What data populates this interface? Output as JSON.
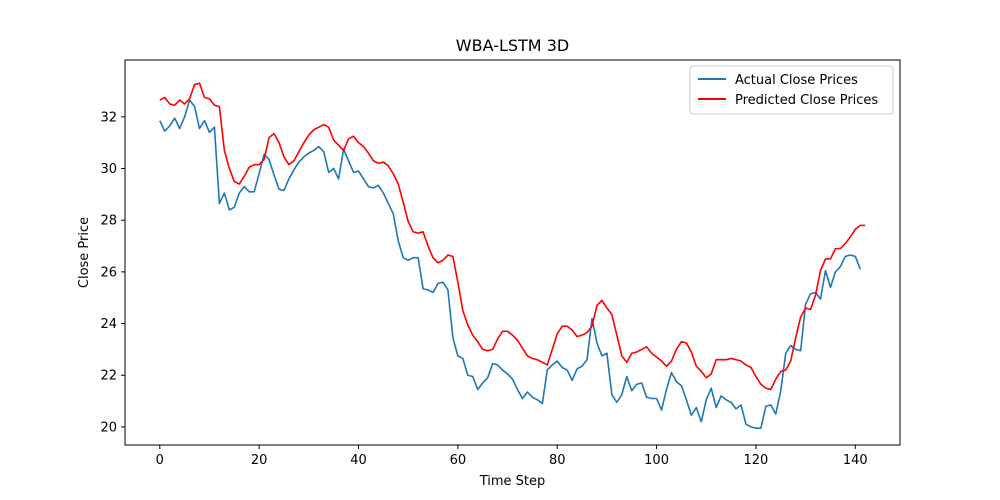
{
  "chart_data": {
    "type": "line",
    "title": "WBA-LSTM 3D",
    "xlabel": "Time Step",
    "ylabel": "Close Price",
    "xlim": [
      -7,
      149
    ],
    "ylim": [
      19.3,
      34.2
    ],
    "xticks": [
      0,
      20,
      40,
      60,
      80,
      100,
      120,
      140
    ],
    "yticks": [
      20,
      22,
      24,
      26,
      28,
      30,
      32
    ],
    "grid": false,
    "legend_position": "top-right",
    "series": [
      {
        "name": "Actual Close Prices",
        "color": "#1f77b4",
        "values": [
          31.85,
          31.45,
          31.65,
          31.95,
          31.55,
          32.0,
          32.65,
          32.4,
          31.55,
          31.85,
          31.4,
          31.6,
          28.65,
          29.05,
          28.4,
          28.5,
          29.05,
          29.3,
          29.1,
          29.1,
          29.8,
          30.55,
          30.35,
          29.75,
          29.2,
          29.15,
          29.6,
          29.95,
          30.25,
          30.45,
          30.6,
          30.7,
          30.85,
          30.65,
          29.85,
          30.0,
          29.6,
          30.75,
          30.3,
          29.85,
          29.9,
          29.6,
          29.3,
          29.25,
          29.35,
          29.05,
          28.65,
          28.25,
          27.2,
          26.55,
          26.45,
          26.55,
          26.55,
          25.35,
          25.3,
          25.2,
          25.55,
          25.6,
          25.3,
          23.45,
          22.75,
          22.65,
          22.0,
          21.95,
          21.45,
          21.7,
          21.9,
          22.45,
          22.4,
          22.2,
          22.05,
          21.85,
          21.45,
          21.1,
          21.35,
          21.15,
          21.05,
          20.9,
          22.2,
          22.4,
          22.55,
          22.3,
          22.2,
          21.8,
          22.25,
          22.35,
          22.6,
          24.2,
          23.25,
          22.75,
          22.85,
          21.25,
          20.95,
          21.25,
          21.95,
          21.4,
          21.65,
          21.7,
          21.15,
          21.1,
          21.1,
          20.65,
          21.45,
          22.1,
          21.75,
          21.6,
          21.05,
          20.45,
          20.75,
          20.2,
          21.05,
          21.5,
          20.75,
          21.2,
          21.05,
          20.95,
          20.7,
          20.85,
          20.1,
          20.0,
          19.95,
          19.95,
          20.8,
          20.85,
          20.5,
          21.4,
          22.85,
          23.15,
          23.0,
          22.95,
          24.75,
          25.15,
          25.2,
          24.95,
          26.05,
          25.4,
          26.0,
          26.2,
          26.6,
          26.65,
          26.6,
          26.1
        ]
      },
      {
        "name": "Predicted Close Prices",
        "color": "#ff0000",
        "values": [
          32.65,
          32.75,
          32.5,
          32.45,
          32.65,
          32.5,
          32.7,
          33.25,
          33.3,
          32.75,
          32.7,
          32.45,
          32.4,
          30.7,
          30.0,
          29.5,
          29.4,
          29.7,
          30.05,
          30.15,
          30.15,
          30.35,
          31.2,
          31.35,
          31.0,
          30.45,
          30.15,
          30.3,
          30.65,
          31.0,
          31.3,
          31.5,
          31.6,
          31.7,
          31.6,
          31.1,
          30.9,
          30.7,
          31.15,
          31.25,
          31.0,
          30.85,
          30.6,
          30.3,
          30.2,
          30.25,
          30.1,
          29.8,
          29.4,
          28.7,
          27.95,
          27.55,
          27.5,
          27.55,
          27.0,
          26.55,
          26.35,
          26.45,
          26.65,
          26.6,
          25.6,
          24.5,
          23.95,
          23.55,
          23.3,
          23.0,
          22.95,
          23.0,
          23.4,
          23.7,
          23.7,
          23.55,
          23.35,
          23.05,
          22.75,
          22.65,
          22.6,
          22.5,
          22.4,
          23.0,
          23.6,
          23.9,
          23.9,
          23.75,
          23.5,
          23.55,
          23.65,
          23.9,
          24.7,
          24.9,
          24.6,
          24.35,
          23.55,
          22.75,
          22.5,
          22.85,
          22.9,
          23.0,
          23.1,
          22.85,
          22.7,
          22.55,
          22.35,
          22.55,
          23.0,
          23.3,
          23.25,
          22.9,
          22.35,
          22.15,
          21.9,
          22.05,
          22.6,
          22.6,
          22.6,
          22.65,
          22.6,
          22.55,
          22.4,
          22.3,
          21.95,
          21.65,
          21.5,
          21.45,
          21.85,
          22.15,
          22.2,
          22.55,
          23.45,
          24.25,
          24.6,
          24.55,
          25.1,
          26.05,
          26.5,
          26.5,
          26.9,
          26.9,
          27.1,
          27.35,
          27.65,
          27.8,
          27.8
        ]
      }
    ]
  }
}
